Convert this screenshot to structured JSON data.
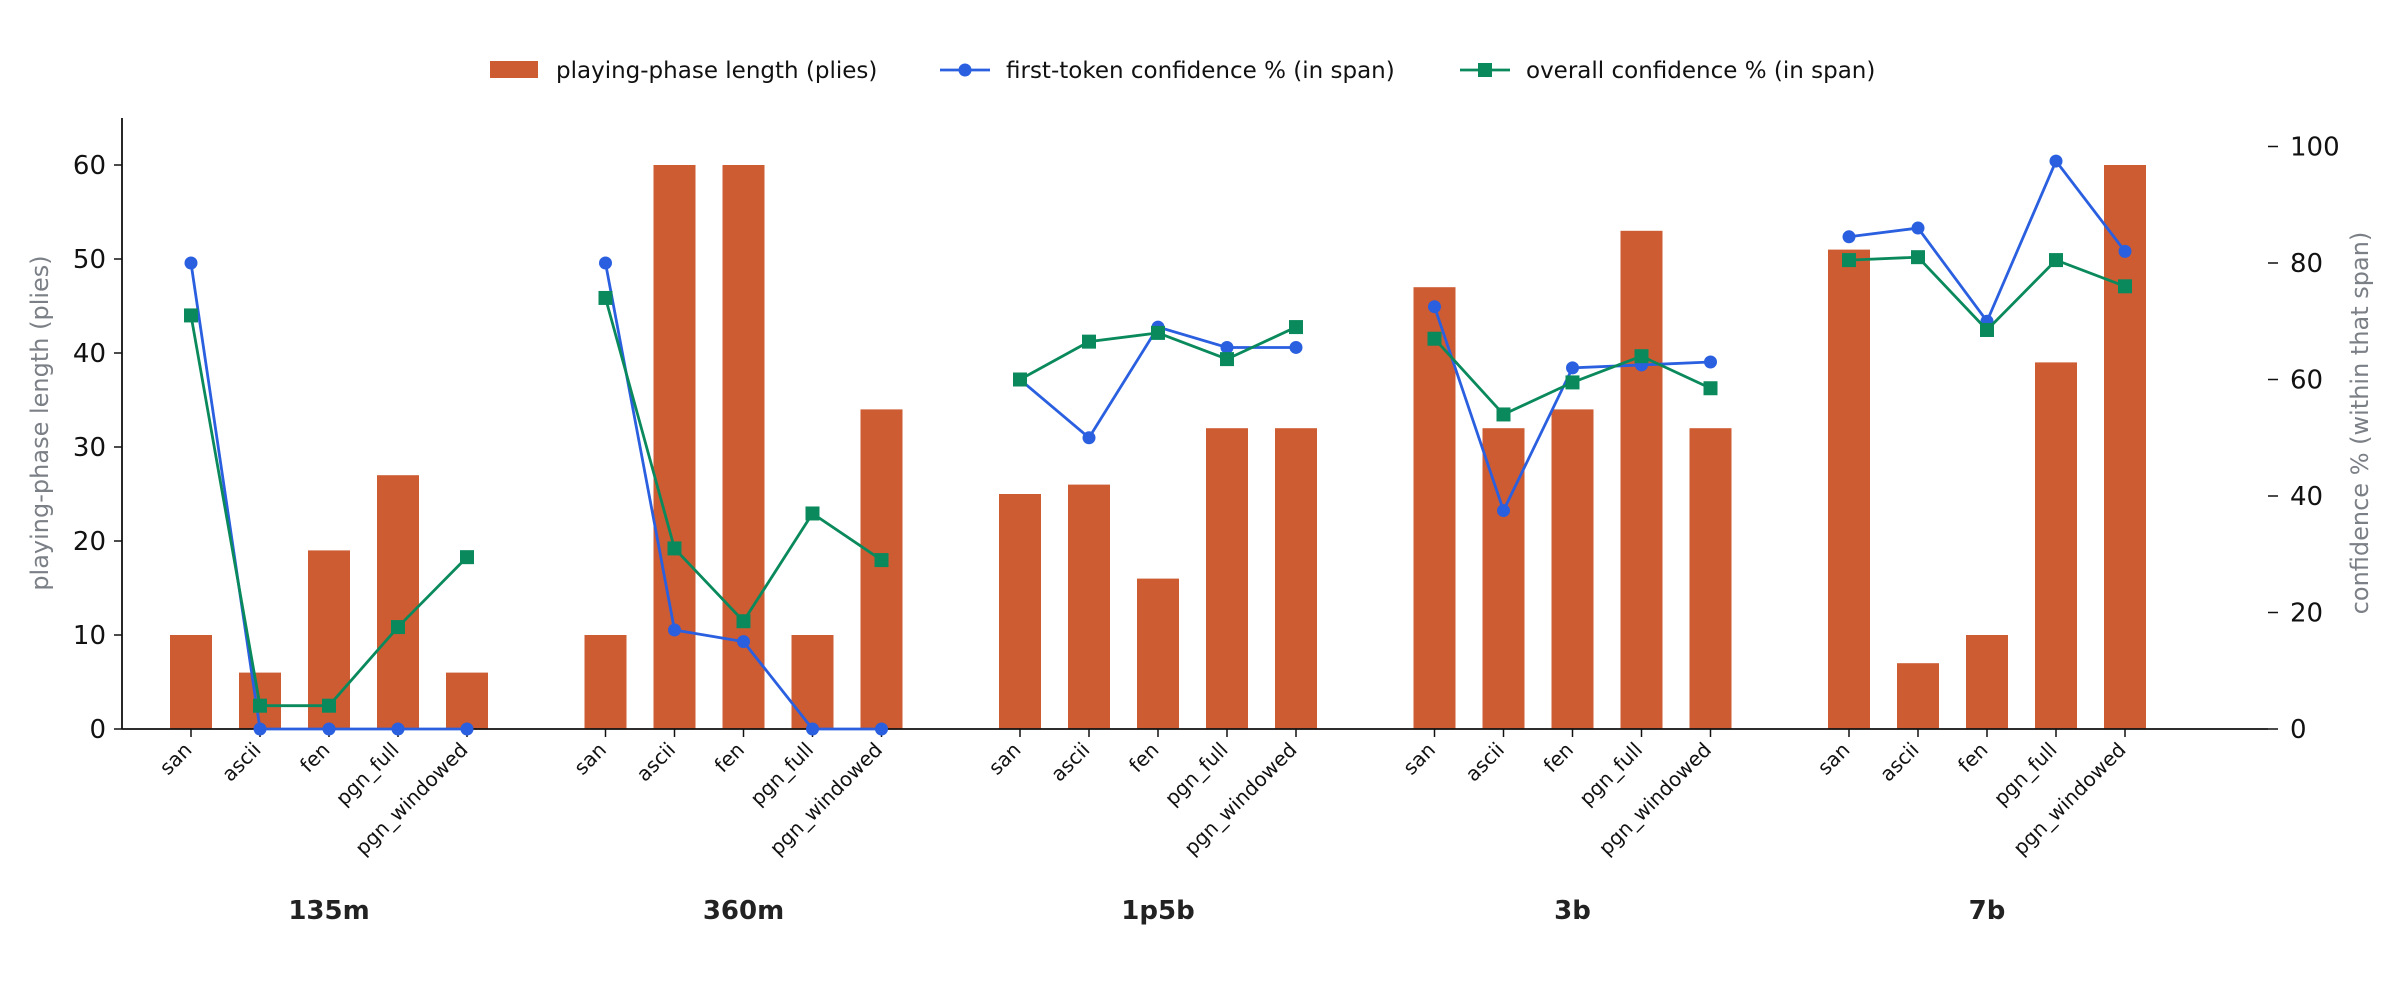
{
  "chart_data": {
    "type": "bar",
    "legend": {
      "placement": "top-center",
      "entries": [
        {
          "label": "playing-phase length (plies)",
          "kind": "bar",
          "color": "#cd5c33"
        },
        {
          "label": "first-token confidence % (in span)",
          "kind": "line-circle",
          "color": "#2a5fe0"
        },
        {
          "label": "overall confidence % (in span)",
          "kind": "line-square",
          "color": "#0a8a5c"
        }
      ]
    },
    "ylabel_left": "playing-phase length (plies)",
    "ylabel_right": "confidence % (within that span)",
    "ylim_left": [
      0,
      65
    ],
    "ylim_right": [
      0,
      104.8
    ],
    "yticks_left": [
      0,
      10,
      20,
      30,
      40,
      50,
      60
    ],
    "yticks_right": [
      0,
      20,
      40,
      60,
      80,
      100
    ],
    "grid": false,
    "groups": [
      {
        "name": "135m",
        "categories": [
          "san",
          "ascii",
          "fen",
          "pgn_full",
          "pgn_windowed"
        ],
        "bar_values": [
          10,
          6,
          19,
          27,
          6
        ],
        "first_token_conf": [
          80,
          0,
          0,
          0,
          0
        ],
        "overall_conf": [
          71,
          4,
          4,
          17.5,
          29.5
        ]
      },
      {
        "name": "360m",
        "categories": [
          "san",
          "ascii",
          "fen",
          "pgn_full",
          "pgn_windowed"
        ],
        "bar_values": [
          10,
          60,
          60,
          10,
          34
        ],
        "first_token_conf": [
          80,
          17,
          15,
          0,
          0
        ],
        "overall_conf": [
          74,
          31,
          18.5,
          37,
          29
        ]
      },
      {
        "name": "1p5b",
        "categories": [
          "san",
          "ascii",
          "fen",
          "pgn_full",
          "pgn_windowed"
        ],
        "bar_values": [
          25,
          26,
          16,
          32,
          32
        ],
        "first_token_conf": [
          60,
          50,
          69,
          65.5,
          65.5
        ],
        "overall_conf": [
          60,
          66.5,
          68,
          63.5,
          69
        ]
      },
      {
        "name": "3b",
        "categories": [
          "san",
          "ascii",
          "fen",
          "pgn_full",
          "pgn_windowed"
        ],
        "bar_values": [
          47,
          32,
          34,
          53,
          32
        ],
        "first_token_conf": [
          72.5,
          37.5,
          62,
          62.5,
          63
        ],
        "overall_conf": [
          67,
          54,
          59.5,
          64,
          58.5
        ]
      },
      {
        "name": "7b",
        "categories": [
          "san",
          "ascii",
          "fen",
          "pgn_full",
          "pgn_windowed"
        ],
        "bar_values": [
          51,
          7,
          10,
          39,
          60
        ],
        "first_token_conf": [
          84.5,
          86,
          70,
          97.5,
          82
        ],
        "overall_conf": [
          80.5,
          81,
          68.5,
          80.5,
          76
        ]
      }
    ]
  }
}
